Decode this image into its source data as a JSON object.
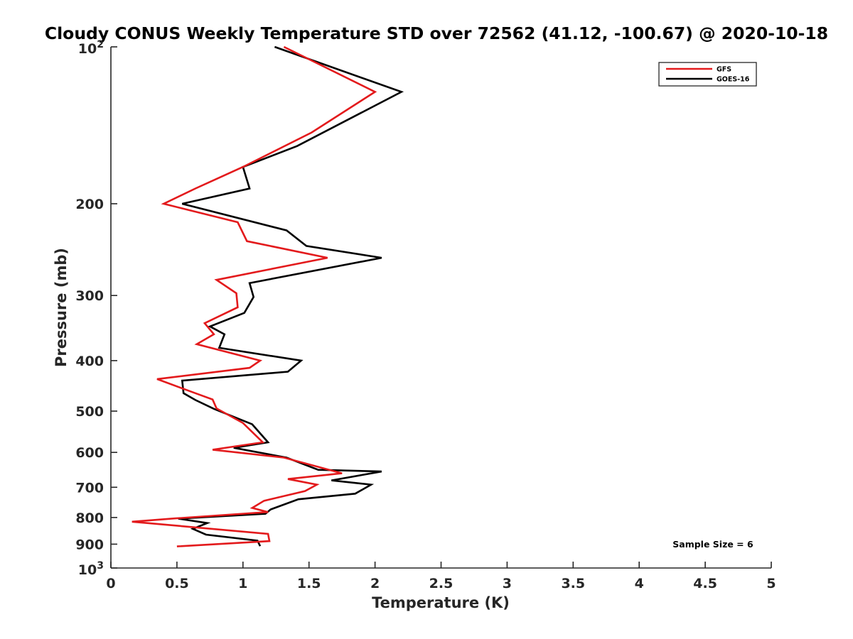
{
  "chart_data": {
    "type": "line",
    "title": "Cloudy CONUS Weekly Temperature STD over 72562 (41.12, -100.67) @ 2020-10-18",
    "xlabel": "Temperature (K)",
    "ylabel": "Pressure (mb)",
    "xlim": [
      0,
      5
    ],
    "ylim": [
      100,
      1000
    ],
    "yscale": "log",
    "y_reversed": true,
    "x_ticks": [
      0,
      0.5,
      1,
      1.5,
      2,
      2.5,
      3,
      3.5,
      4,
      4.5,
      5
    ],
    "x_tick_labels": [
      "0",
      "0.5",
      "1",
      "1.5",
      "2",
      "2.5",
      "3",
      "3.5",
      "4",
      "4.5",
      "5"
    ],
    "y_ticks": [
      200,
      300,
      400,
      500,
      600,
      700,
      800,
      900
    ],
    "y_tick_labels": [
      "200",
      "300",
      "400",
      "500",
      "600",
      "700",
      "800",
      "900"
    ],
    "y_top_label": {
      "base": "10",
      "exp": "2"
    },
    "y_bottom_label": {
      "base": "10",
      "exp": "3"
    },
    "grid": false,
    "legend_position": "top-right",
    "annotation": "Sample Size = 6",
    "series": [
      {
        "name": "GFS",
        "color": "#e31a1c",
        "x": [
          1.31,
          2.0,
          1.52,
          1.0,
          0.64,
          0.4,
          0.96,
          1.03,
          1.64,
          0.8,
          0.95,
          0.96,
          0.71,
          0.78,
          0.65,
          1.13,
          1.05,
          0.35,
          0.64,
          0.77,
          0.8,
          1.0,
          1.15,
          0.77,
          1.31,
          1.75,
          1.34,
          1.56,
          1.47,
          1.16,
          1.07,
          1.19,
          0.49,
          0.16,
          1.19,
          1.2,
          0.5
        ],
        "y": [
          100,
          122,
          146,
          170,
          187,
          200,
          217,
          236,
          254,
          280,
          297,
          316,
          339,
          356,
          372,
          400,
          413,
          434,
          462,
          475,
          494,
          527,
          574,
          593,
          614,
          658,
          675,
          692,
          712,
          743,
          767,
          781,
          803,
          815,
          860,
          888,
          909
        ]
      },
      {
        "name": "GOES-16",
        "color": "#000000",
        "x": [
          1.24,
          2.2,
          1.41,
          1.0,
          1.05,
          0.54,
          1.33,
          1.48,
          2.05,
          1.05,
          1.08,
          1.01,
          0.75,
          0.86,
          0.82,
          1.44,
          1.34,
          0.54,
          0.55,
          0.64,
          0.78,
          1.07,
          1.19,
          0.93,
          1.33,
          1.57,
          2.05,
          1.67,
          1.97,
          1.85,
          1.42,
          1.21,
          1.17,
          0.51,
          0.73,
          0.62,
          0.72,
          1.11,
          1.13
        ],
        "y": [
          100,
          122,
          155,
          170,
          187,
          200,
          225,
          241,
          254,
          284,
          302,
          324,
          344,
          356,
          378,
          400,
          420,
          437,
          462,
          476,
          495,
          530,
          574,
          588,
          614,
          648,
          653,
          679,
          692,
          720,
          738,
          772,
          787,
          804,
          820,
          841,
          863,
          886,
          908
        ]
      }
    ]
  }
}
